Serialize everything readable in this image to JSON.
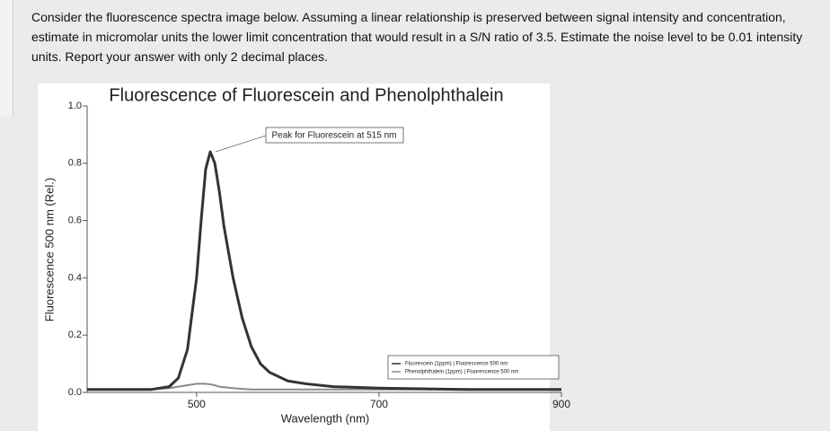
{
  "question": "Consider the fluorescence spectra image below. Assuming a linear relationship is preserved between signal intensity and concentration, estimate in micromolar units the lower limit concentration that would result in a S/N ratio of 3.5. Estimate the noise level to be 0.01 intensity units. Report your answer with only 2 decimal places.",
  "chart_data": {
    "type": "line",
    "title": "Fluorescence of Fluorescein and Phenolphthalein",
    "x_label": "Wavelength (nm)",
    "y_label": "Fluorescence 500 nm (Rel.)",
    "annotation": "Peak for Fluorescein at 515 nm",
    "x": [
      380,
      450,
      470,
      480,
      490,
      500,
      505,
      510,
      515,
      520,
      525,
      530,
      540,
      550,
      560,
      570,
      580,
      600,
      620,
      650,
      700,
      800,
      900
    ],
    "series": [
      {
        "name": "Fluorescein (1ppm) | Fluorescence 500 nm",
        "color": "#333333",
        "values": [
          0.01,
          0.01,
          0.02,
          0.05,
          0.15,
          0.4,
          0.6,
          0.78,
          0.84,
          0.8,
          0.7,
          0.58,
          0.4,
          0.26,
          0.16,
          0.1,
          0.07,
          0.04,
          0.03,
          0.02,
          0.015,
          0.01,
          0.01
        ]
      },
      {
        "name": "Phenolphthalein (1ppm) | Fluorescence 500 nm",
        "color": "#8a8a8a",
        "values": [
          0.01,
          0.01,
          0.015,
          0.02,
          0.025,
          0.03,
          0.03,
          0.03,
          0.028,
          0.025,
          0.02,
          0.018,
          0.015,
          0.012,
          0.01,
          0.01,
          0.01,
          0.01,
          0.01,
          0.01,
          0.01,
          0.01,
          0.01
        ]
      }
    ],
    "xlim": [
      380,
      900
    ],
    "xticks": [
      500,
      700,
      900
    ],
    "ylim": [
      0,
      1
    ],
    "yticks": [
      {
        "value": 0,
        "label": "0.0"
      },
      0.2,
      0.4,
      0.6,
      0.8,
      {
        "value": 1,
        "label": "1.0"
      }
    ],
    "legend": "lower-right"
  }
}
